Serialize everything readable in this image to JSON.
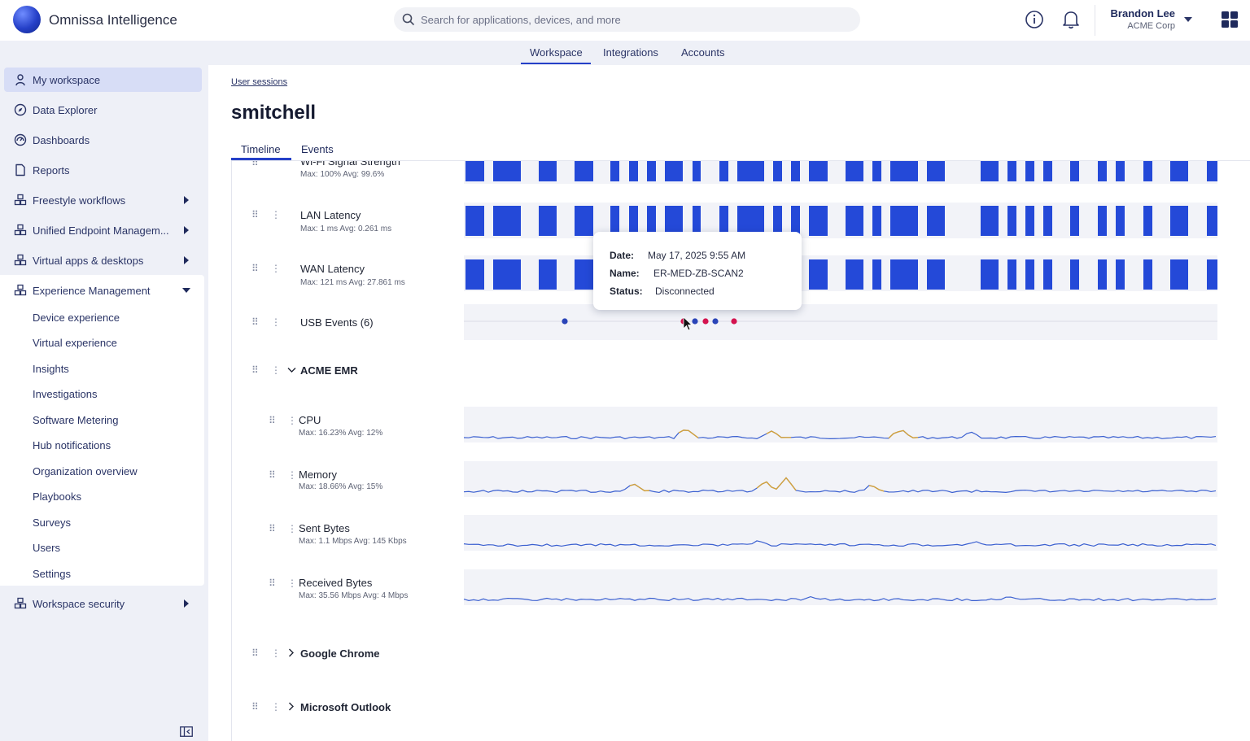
{
  "app": {
    "name": "Omnissa Intelligence"
  },
  "search": {
    "placeholder": "Search for applications, devices, and more"
  },
  "user": {
    "name": "Brandon Lee",
    "org": "ACME Corp"
  },
  "nav": {
    "tabs": [
      "Workspace",
      "Integrations",
      "Accounts"
    ],
    "active": "Workspace"
  },
  "sidebar": {
    "items": [
      {
        "label": "My workspace",
        "icon": "person-icon",
        "active": true
      },
      {
        "label": "Data Explorer",
        "icon": "compass-icon"
      },
      {
        "label": "Dashboards",
        "icon": "dashboard-icon"
      },
      {
        "label": "Reports",
        "icon": "document-icon"
      },
      {
        "label": "Freestyle workflows",
        "icon": "cubes-icon",
        "expandable": true
      },
      {
        "label": "Unified Endpoint Managem...",
        "icon": "cubes-icon",
        "expandable": true
      },
      {
        "label": "Virtual apps & desktops",
        "icon": "cubes-icon",
        "expandable": true
      },
      {
        "label": "Experience Management",
        "icon": "cubes-icon",
        "expanded": true
      },
      {
        "label": "Workspace security",
        "icon": "cubes-icon",
        "expandable": true
      }
    ],
    "sub_items": [
      "Device experience",
      "Virtual experience",
      "Insights",
      "Investigations",
      "Software Metering",
      "Hub notifications",
      "Organization overview",
      "Playbooks",
      "Surveys",
      "Users",
      "Settings"
    ]
  },
  "page": {
    "breadcrumb": "User sessions",
    "title": "smitchell",
    "tabs": [
      "Timeline",
      "Events"
    ],
    "active_tab": "Timeline"
  },
  "timeline": {
    "network_rows": [
      {
        "label": "Wi-Fi Signal Strength",
        "stats": "Max: 100% Avg: 99.6%"
      },
      {
        "label": "LAN Latency",
        "stats": "Max: 1 ms Avg: 0.261 ms"
      },
      {
        "label": "WAN Latency",
        "stats": "Max: 121 ms Avg: 27.861 ms"
      }
    ],
    "usb": {
      "label": "USB Events (6)"
    },
    "groups": [
      {
        "label": "ACME EMR",
        "expanded": true
      },
      {
        "label": "Google Chrome",
        "expanded": false
      },
      {
        "label": "Microsoft Outlook",
        "expanded": false
      }
    ],
    "metrics": [
      {
        "label": "CPU",
        "stats": "Max: 16.23% Avg: 12%"
      },
      {
        "label": "Memory",
        "stats": "Max: 18.66% Avg: 15%"
      },
      {
        "label": "Sent Bytes",
        "stats": "Max: 1.1 Mbps Avg: 145 Kbps"
      },
      {
        "label": "Received Bytes",
        "stats": "Max: 35.56 Mbps Avg: 4 Mbps"
      }
    ]
  },
  "tooltip": {
    "date_label": "Date:",
    "date": "May 17, 2025 9:55 AM",
    "name_label": "Name:",
    "name": "ER-MED-ZB-SCAN2",
    "status_label": "Status:",
    "status": "Disconnected"
  },
  "colors": {
    "accent": "#2540c8",
    "bar": "#2449d8",
    "usb_connect": "#2a44b8",
    "usb_disconnect": "#d4134f",
    "spike": "#d4a23a"
  }
}
